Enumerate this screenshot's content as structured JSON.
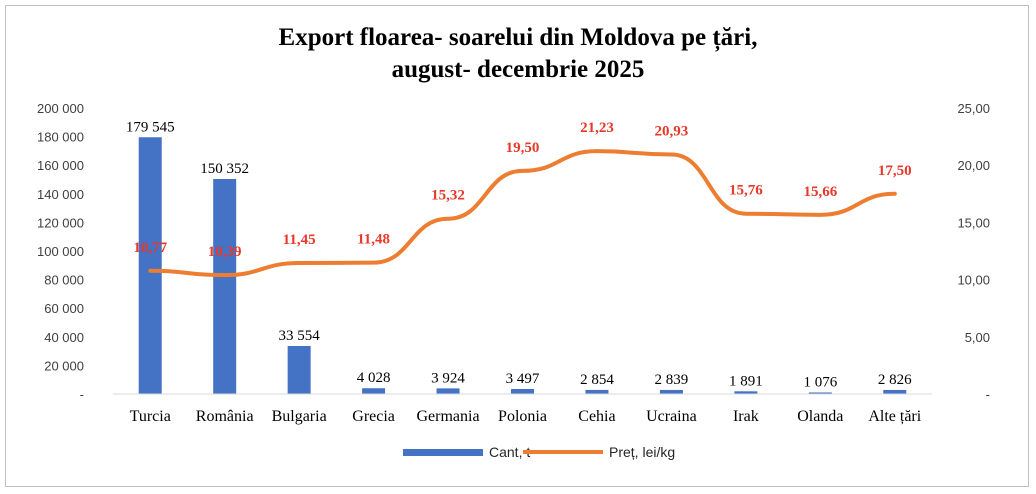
{
  "chart_data": {
    "type": "bar+line",
    "title": "Export floarea- soarelui din Moldova pe țări,",
    "subtitle": "august- decembrie 2025",
    "categories": [
      "Turcia",
      "România",
      "Bulgaria",
      "Grecia",
      "Germania",
      "Polonia",
      "Cehia",
      "Ucraina",
      "Irak",
      "Olanda",
      "Alte țări"
    ],
    "series": [
      {
        "name": "Cant, t",
        "type": "bar",
        "axis": "left",
        "color": "#4472c4",
        "values": [
          179545,
          150352,
          33554,
          4028,
          3924,
          3497,
          2854,
          2839,
          1891,
          1076,
          2826
        ],
        "labels": [
          "179 545",
          "150 352",
          "33 554",
          "4 028",
          "3 924",
          "3 497",
          "2 854",
          "2 839",
          "1 891",
          "1 076",
          "2 826"
        ]
      },
      {
        "name": "Preț, lei/kg",
        "type": "line",
        "axis": "right",
        "color": "#ed7d31",
        "label_color": "#e8382a",
        "values": [
          10.77,
          10.39,
          11.45,
          11.48,
          15.32,
          19.5,
          21.23,
          20.93,
          15.76,
          15.66,
          17.5
        ],
        "labels": [
          "10,77",
          "10,39",
          "11,45",
          "11,48",
          "15,32",
          "19,50",
          "21,23",
          "20,93",
          "15,76",
          "15,66",
          "17,50"
        ]
      }
    ],
    "y_left": {
      "range": [
        0,
        200000
      ],
      "tick_values": [
        0,
        20000,
        40000,
        60000,
        80000,
        100000,
        120000,
        140000,
        160000,
        180000,
        200000
      ],
      "tick_labels": [
        "-",
        "20 000",
        "40 000",
        "60 000",
        "80 000",
        "100 000",
        "120 000",
        "140 000",
        "160 000",
        "180 000",
        "200 000"
      ]
    },
    "y_right": {
      "range": [
        0,
        25
      ],
      "tick_values": [
        0,
        5,
        10,
        15,
        20,
        25
      ],
      "tick_labels": [
        "-",
        "5,00",
        "10,00",
        "15,00",
        "20,00",
        "25,00"
      ]
    },
    "grid": false,
    "legend_position": "bottom"
  }
}
